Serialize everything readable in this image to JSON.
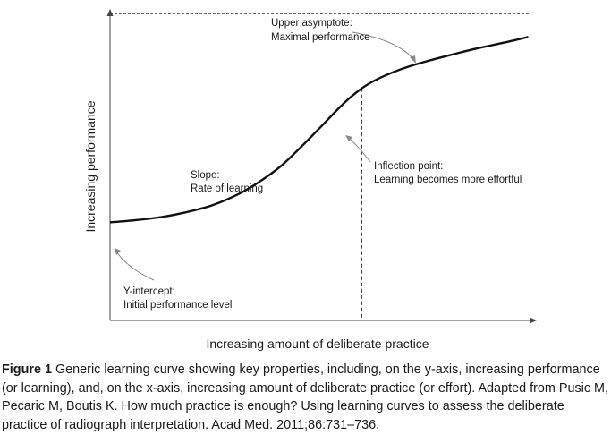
{
  "chart_data": {
    "type": "line",
    "title": "",
    "xlabel": "Increasing amount of deliberate practice",
    "ylabel": "Increasing performance",
    "xlim": [
      0,
      1
    ],
    "ylim": [
      0,
      1
    ],
    "grid": false,
    "series": [
      {
        "values_x": [
          0.0,
          0.06,
          0.12,
          0.18,
          0.24,
          0.3,
          0.35,
          0.4,
          0.45,
          0.5,
          0.55,
          0.59,
          0.62,
          0.66,
          0.7,
          0.75,
          0.8,
          0.85,
          0.9,
          0.95,
          0.98
        ],
        "values_y": [
          0.315,
          0.322,
          0.332,
          0.348,
          0.37,
          0.405,
          0.445,
          0.495,
          0.56,
          0.63,
          0.7,
          0.745,
          0.77,
          0.795,
          0.815,
          0.835,
          0.853,
          0.87,
          0.885,
          0.9,
          0.91
        ]
      }
    ],
    "reference_lines": {
      "asymptote_y": 0.985,
      "inflection_x": 0.59
    },
    "annotations": [
      {
        "lines": [
          "Upper asymptote:",
          "Maximal performance"
        ]
      },
      {
        "lines": [
          "Inflection point:",
          "Learning becomes more effortful"
        ]
      },
      {
        "lines": [
          "Slope:",
          "Rate of learning"
        ]
      },
      {
        "lines": [
          "Y-intercept:",
          "Initial performance level"
        ]
      }
    ]
  },
  "caption": {
    "lead": "Figure 1",
    "text": " Generic learning curve showing key properties, including, on the y-axis, increasing performance (or learning), and, on the x-axis, increasing amount of deliberate practice (or effort). Adapted from Pusic M, Pecaric M, Boutis K. How much practice is enough? Using learning curves to assess the deliberate practice of radiograph interpretation. Acad Med. 2011;86:731–736."
  }
}
